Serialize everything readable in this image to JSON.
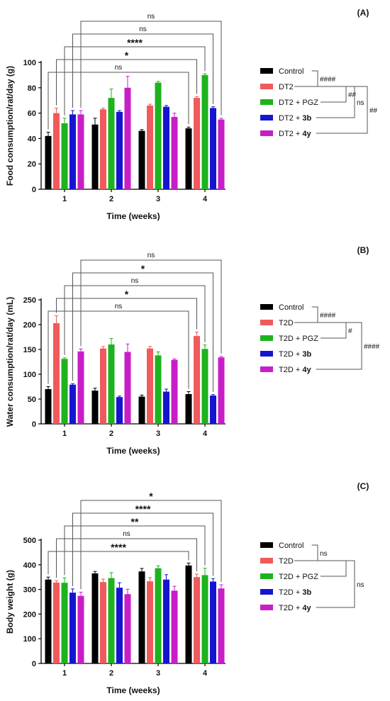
{
  "chart_data": [
    {
      "type": "bar",
      "panel_label": "(A)",
      "xlabel": "Time (weeks)",
      "ylabel": "Food consumption/rat/day (g)",
      "categories": [
        "1",
        "2",
        "3",
        "4"
      ],
      "ylim": [
        0,
        100
      ],
      "yticks": [
        0,
        20,
        40,
        60,
        80,
        100
      ],
      "series": [
        {
          "name": "Control",
          "name_plain": "Control",
          "name_bold": "",
          "color": "#000000",
          "values": [
            42,
            51,
            46,
            48
          ],
          "errors": [
            3,
            5,
            1,
            1
          ]
        },
        {
          "name": "DT2",
          "name_plain": "DT2",
          "name_bold": "",
          "color": "#f05a5a",
          "values": [
            60,
            63,
            66,
            72
          ],
          "errors": [
            4,
            1,
            1,
            1
          ]
        },
        {
          "name": "DT2 + PGZ",
          "name_plain": "DT2 + PGZ",
          "name_bold": "",
          "color": "#1db31d",
          "values": [
            52,
            72,
            84,
            90
          ],
          "errors": [
            4,
            7,
            1,
            1
          ]
        },
        {
          "name": "DT2 + 3b",
          "name_plain": "DT2 + ",
          "name_bold": "3b",
          "color": "#1515d0",
          "values": [
            59,
            61,
            65,
            64
          ],
          "errors": [
            3,
            1,
            1,
            1
          ]
        },
        {
          "name": "DT2 + 4y",
          "name_plain": "DT2 + ",
          "name_bold": "4y",
          "color": "#c81ec8",
          "values": [
            59,
            80,
            57,
            55
          ],
          "errors": [
            3,
            9,
            3,
            1
          ]
        }
      ],
      "comparisons": [
        {
          "label": "ns",
          "from_series": 0,
          "to_series": 0
        },
        {
          "label": "*",
          "from_series": 1,
          "to_series": 1
        },
        {
          "label": "****",
          "from_series": 2,
          "to_series": 2
        },
        {
          "label": "ns",
          "from_series": 3,
          "to_series": 3
        },
        {
          "label": "ns",
          "from_series": 4,
          "to_series": 4
        }
      ],
      "legend_brackets": [
        {
          "label": "####",
          "from": 0,
          "to": 1
        },
        {
          "label": "##",
          "from": 1,
          "to": 2
        },
        {
          "label": "ns",
          "from": 1,
          "to": 3
        },
        {
          "label": "##",
          "from": 1,
          "to": 4
        }
      ]
    },
    {
      "type": "bar",
      "panel_label": "(B)",
      "xlabel": "Time (weeks)",
      "ylabel": "Water consumption/rat/day (mL)",
      "categories": [
        "1",
        "2",
        "3",
        "4"
      ],
      "ylim": [
        0,
        250
      ],
      "yticks": [
        0,
        50,
        100,
        150,
        200,
        250
      ],
      "series": [
        {
          "name": "Control",
          "name_plain": "Control",
          "name_bold": "",
          "color": "#000000",
          "values": [
            70,
            67,
            55,
            60
          ],
          "errors": [
            5,
            5,
            3,
            5
          ]
        },
        {
          "name": "T2D",
          "name_plain": "T2D",
          "name_bold": "",
          "color": "#f05a5a",
          "values": [
            203,
            152,
            152,
            177
          ],
          "errors": [
            15,
            4,
            4,
            8
          ]
        },
        {
          "name": "T2D + PGZ",
          "name_plain": "T2D + PGZ",
          "name_bold": "",
          "color": "#1db31d",
          "values": [
            131,
            160,
            138,
            151
          ],
          "errors": [
            2,
            12,
            7,
            8
          ]
        },
        {
          "name": "T2D + 3b",
          "name_plain": "T2D + ",
          "name_bold": "3b",
          "color": "#1515d0",
          "values": [
            79,
            54,
            65,
            57
          ],
          "errors": [
            2,
            2,
            5,
            2
          ]
        },
        {
          "name": "T2D + 4y",
          "name_plain": "T2D + ",
          "name_bold": "4y",
          "color": "#c81ec8",
          "values": [
            146,
            145,
            129,
            134
          ],
          "errors": [
            5,
            16,
            2,
            2
          ]
        }
      ],
      "comparisons": [
        {
          "label": "ns",
          "from_series": 0,
          "to_series": 0
        },
        {
          "label": "*",
          "from_series": 1,
          "to_series": 1
        },
        {
          "label": "ns",
          "from_series": 2,
          "to_series": 2
        },
        {
          "label": "*",
          "from_series": 3,
          "to_series": 3
        },
        {
          "label": "ns",
          "from_series": 4,
          "to_series": 4
        }
      ],
      "legend_brackets": [
        {
          "label": "####",
          "from": 0,
          "to": 1
        },
        {
          "label": "#",
          "from": 1,
          "to": 2
        },
        {
          "label": "####",
          "from": 1,
          "to": 4
        }
      ]
    },
    {
      "type": "bar",
      "panel_label": "(C)",
      "xlabel": "Time (weeks)",
      "ylabel": "Body weight (g)",
      "categories": [
        "1",
        "2",
        "3",
        "4"
      ],
      "ylim": [
        0,
        500
      ],
      "yticks": [
        0,
        100,
        200,
        300,
        400,
        500
      ],
      "series": [
        {
          "name": "Control",
          "name_plain": "Control",
          "name_bold": "",
          "color": "#000000",
          "values": [
            340,
            365,
            373,
            397
          ],
          "errors": [
            10,
            8,
            12,
            10
          ]
        },
        {
          "name": "T2D",
          "name_plain": "T2D",
          "name_bold": "",
          "color": "#f05a5a",
          "values": [
            328,
            330,
            333,
            350
          ],
          "errors": [
            8,
            12,
            15,
            12
          ]
        },
        {
          "name": "T2D + PGZ",
          "name_plain": "T2D + PGZ",
          "name_bold": "",
          "color": "#1db31d",
          "values": [
            327,
            346,
            386,
            358
          ],
          "errors": [
            20,
            22,
            10,
            28
          ]
        },
        {
          "name": "T2D + 3b",
          "name_plain": "T2D + ",
          "name_bold": "3b",
          "color": "#1515d0",
          "values": [
            287,
            307,
            340,
            332
          ],
          "errors": [
            15,
            20,
            20,
            12
          ]
        },
        {
          "name": "T2D + 4y",
          "name_plain": "T2D + ",
          "name_bold": "4y",
          "color": "#c81ec8",
          "values": [
            274,
            281,
            295,
            304
          ],
          "errors": [
            15,
            20,
            18,
            15
          ]
        }
      ],
      "comparisons": [
        {
          "label": "****",
          "from_series": 0,
          "to_series": 0
        },
        {
          "label": "ns",
          "from_series": 1,
          "to_series": 1
        },
        {
          "label": "**",
          "from_series": 2,
          "to_series": 2
        },
        {
          "label": "****",
          "from_series": 3,
          "to_series": 3
        },
        {
          "label": "*",
          "from_series": 4,
          "to_series": 4
        }
      ],
      "legend_brackets": [
        {
          "label": "ns",
          "from": 0,
          "to": 1
        },
        {
          "label": "",
          "from": 1,
          "to": 2
        },
        {
          "label": "ns",
          "from": 1,
          "to": 4
        }
      ]
    }
  ]
}
